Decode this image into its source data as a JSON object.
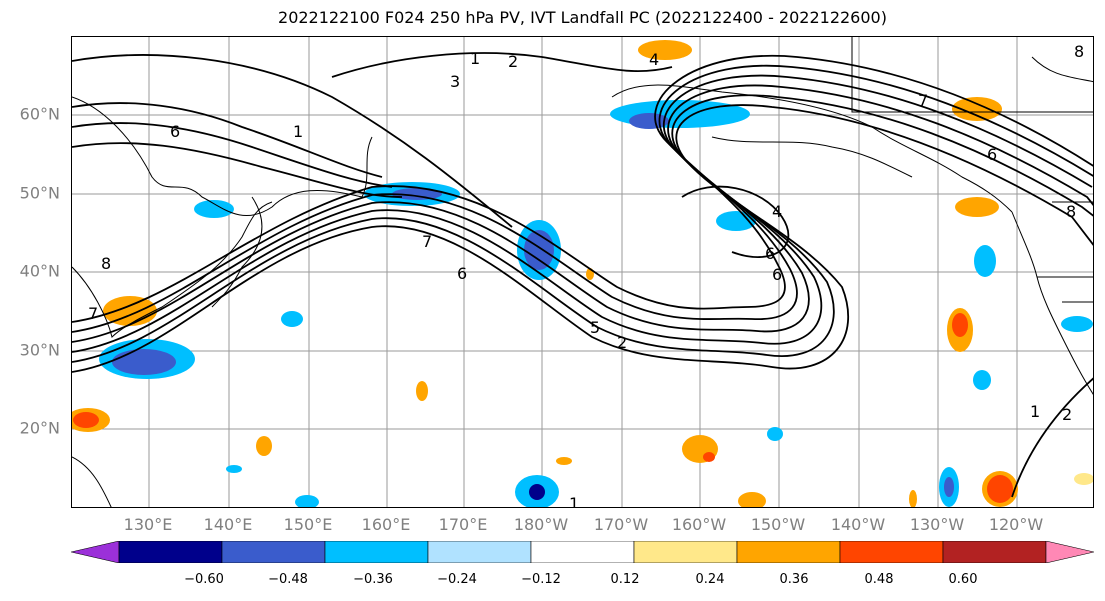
{
  "title": "2022122100 F024 250 hPa PV, IVT Landfall PC (2022122400 - 2022122600)",
  "lat_labels": [
    "60°N",
    "50°N",
    "40°N",
    "30°N",
    "20°N"
  ],
  "lon_labels": [
    "130°E",
    "140°E",
    "150°E",
    "160°E",
    "170°E",
    "180°W",
    "170°W",
    "160°W",
    "150°W",
    "140°W",
    "130°W",
    "120°W"
  ],
  "colorbar": {
    "ticks": [
      "−0.60",
      "−0.48",
      "−0.36",
      "−0.24",
      "−0.12",
      "0.12",
      "0.24",
      "0.36",
      "0.48",
      "0.60"
    ],
    "colors": [
      "#9b30d9",
      "#00008b",
      "#3a5ccc",
      "#00bfff",
      "#b0e2ff",
      "#ffffff",
      "#ffe88a",
      "#ffa500",
      "#ff4500",
      "#b22222",
      "#ff88b5"
    ]
  },
  "contour_labels": [
    "1",
    "2",
    "3",
    "4",
    "6",
    "7",
    "8",
    "1",
    "2",
    "5",
    "6",
    "7",
    "4",
    "6",
    "6",
    "8",
    "7",
    "6",
    "1",
    "2",
    "8",
    "1"
  ],
  "contour_label_values": [
    1,
    2,
    3,
    4,
    6,
    7,
    8
  ]
}
